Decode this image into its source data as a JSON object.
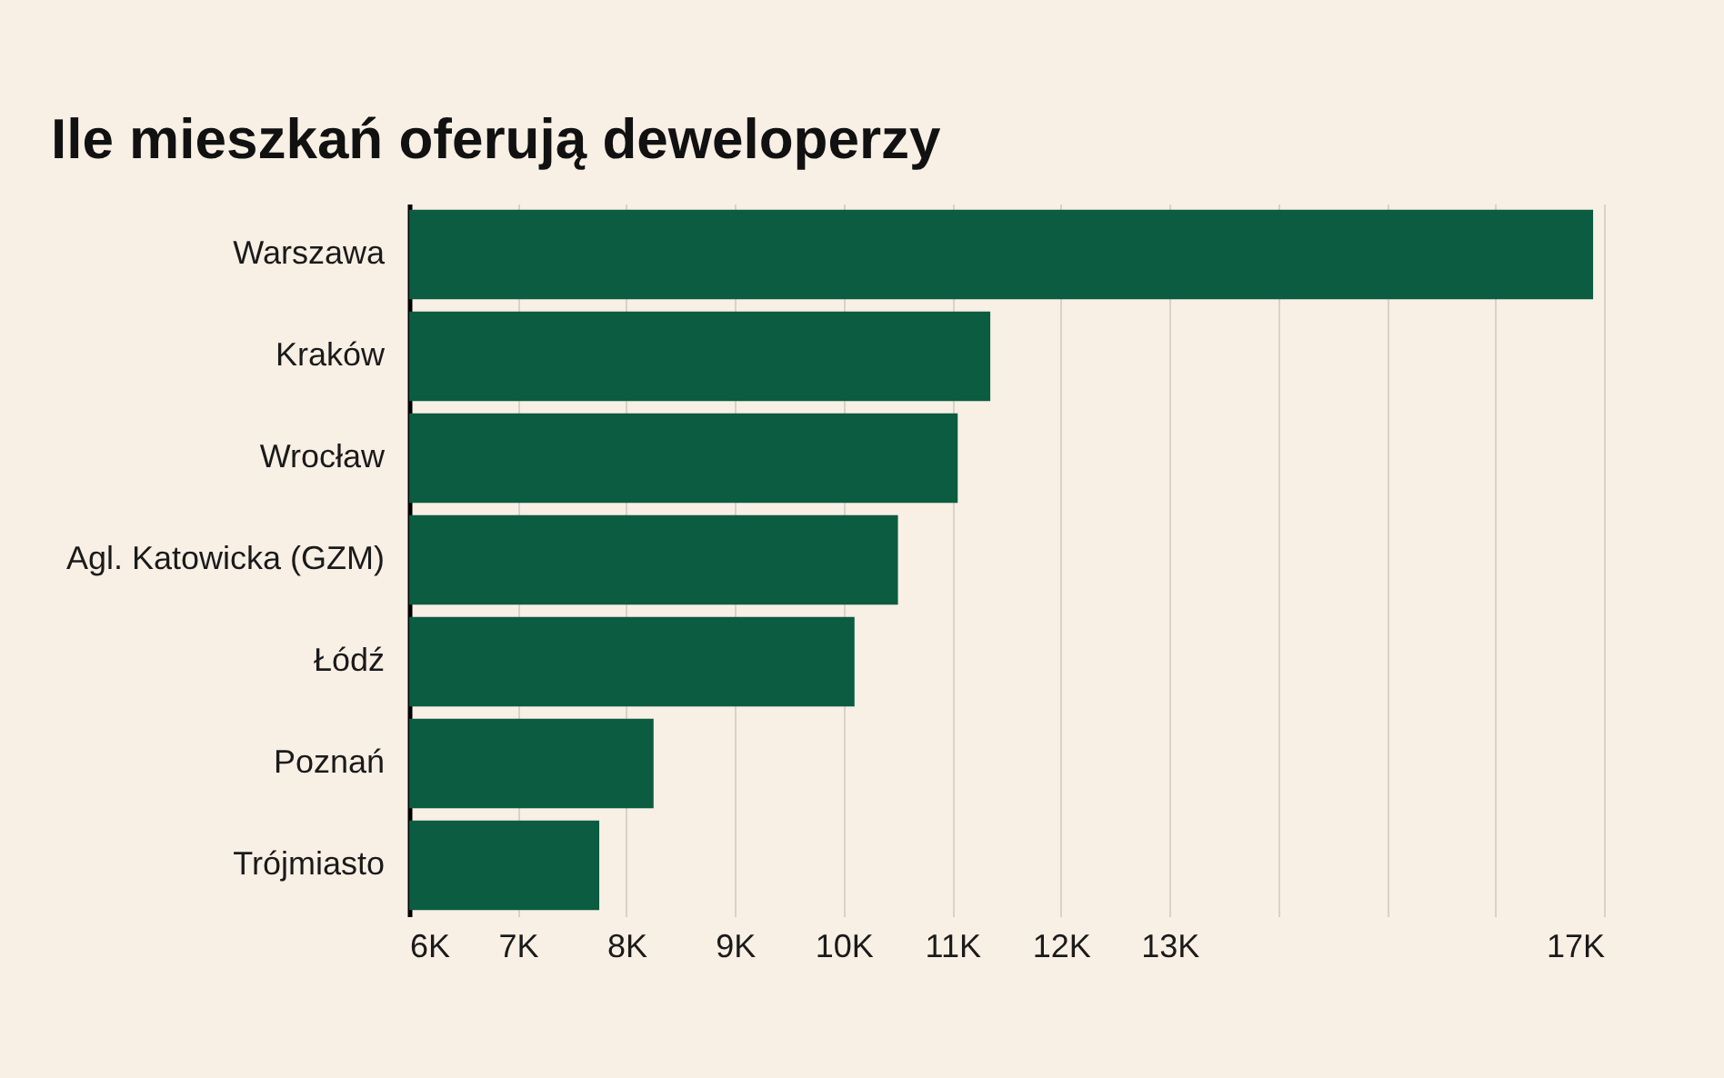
{
  "chart_data": {
    "type": "bar",
    "orientation": "horizontal",
    "title": "Ile mieszkań oferują deweloperzy",
    "categories": [
      "Warszawa",
      "Kraków",
      "Wrocław",
      "Agl. Katowicka (GZM)",
      "Łódź",
      "Poznań",
      "Trójmiasto"
    ],
    "values": [
      16900,
      11350,
      11050,
      10500,
      10100,
      8250,
      7750
    ],
    "color": "#0b5c40",
    "xlim": [
      6000,
      17000
    ],
    "xticks": [
      {
        "value": 6000,
        "label": "6K"
      },
      {
        "value": 7000,
        "label": "7K"
      },
      {
        "value": 8000,
        "label": "8K"
      },
      {
        "value": 9000,
        "label": "9K"
      },
      {
        "value": 10000,
        "label": "10K"
      },
      {
        "value": 11000,
        "label": "11K"
      },
      {
        "value": 12000,
        "label": "12K"
      },
      {
        "value": 13000,
        "label": "13K"
      },
      {
        "value": 14000,
        "label": null
      },
      {
        "value": 15000,
        "label": null
      },
      {
        "value": 16000,
        "label": null
      },
      {
        "value": 17000,
        "label": "17K"
      }
    ],
    "grid": "x"
  }
}
